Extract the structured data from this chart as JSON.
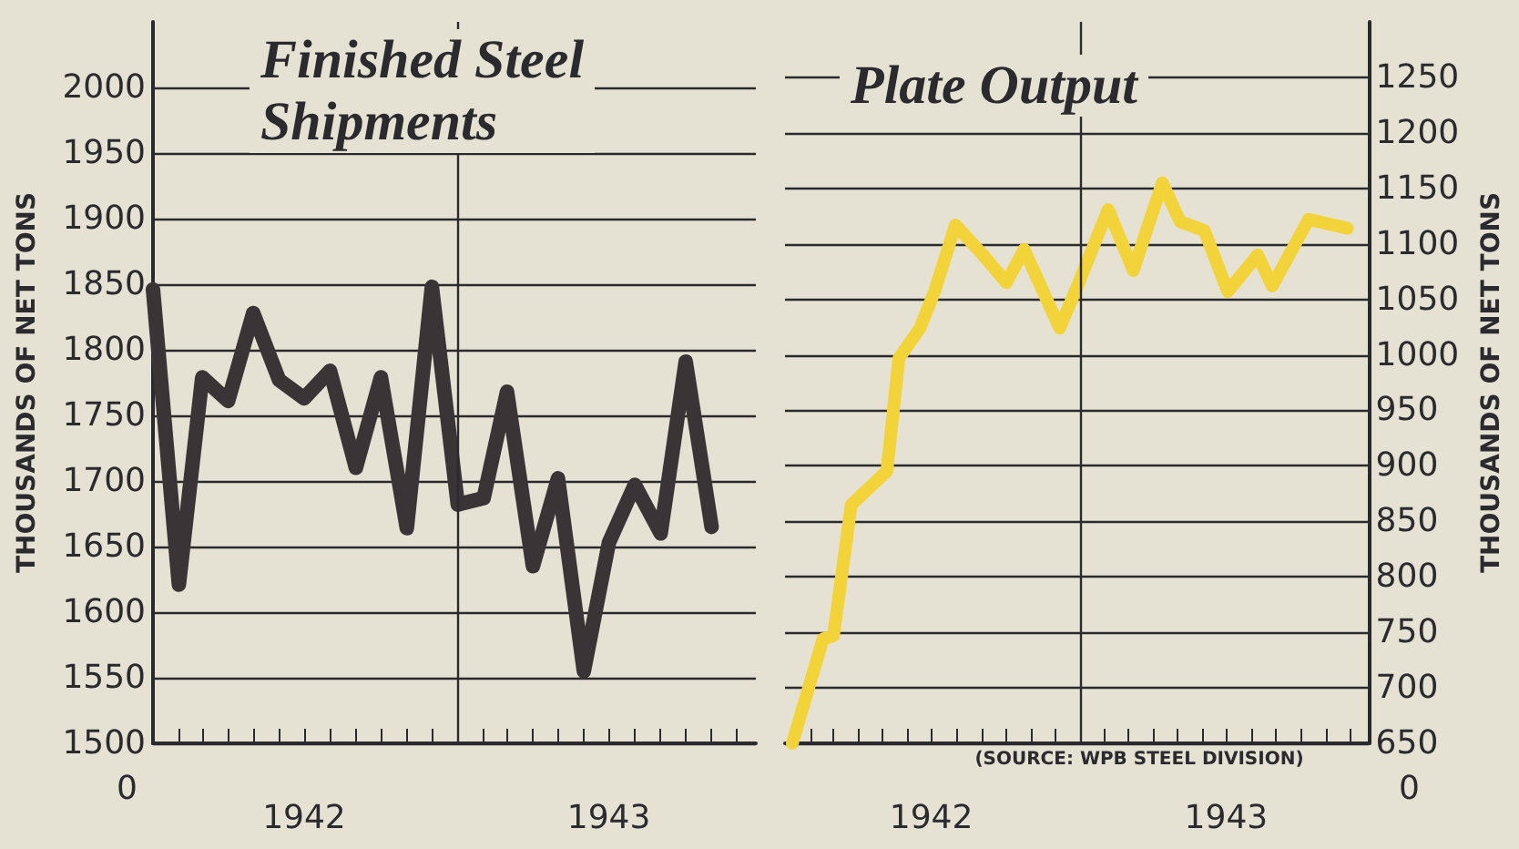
{
  "chart_data": [
    {
      "type": "line",
      "title": "Finished Steel\nShipments",
      "ylabel": "THOUSANDS OF NET TONS",
      "x": [
        "1942-01",
        "1942-02",
        "1942-03",
        "1942-04",
        "1942-05",
        "1942-06",
        "1942-07",
        "1942-08",
        "1942-09",
        "1942-10",
        "1942-11",
        "1942-12",
        "1943-01",
        "1943-02",
        "1943-03",
        "1943-04",
        "1943-05",
        "1943-06",
        "1943-07",
        "1943-08",
        "1943-09",
        "1943-10",
        "1943-11"
      ],
      "series": [
        {
          "color": "#3a3436",
          "values": [
            1846,
            1621,
            1779,
            1761,
            1828,
            1777,
            1763,
            1784,
            1710,
            1779,
            1664,
            1848,
            1682,
            1687,
            1768,
            1635,
            1702,
            1555,
            1653,
            1697,
            1660,
            1791,
            1665
          ]
        }
      ],
      "xlim": [
        "1942-01-01",
        "1943-12-24"
      ],
      "xticks": [
        {
          "value": "1942-02",
          "label": null
        },
        {
          "value": "1942-03",
          "label": null
        },
        {
          "value": "1942-04",
          "label": null
        },
        {
          "value": "1942-05",
          "label": null
        },
        {
          "value": "1942-06",
          "label": null
        },
        {
          "value": "1942-07-01",
          "label": "1942"
        },
        {
          "value": "1942-08",
          "label": null
        },
        {
          "value": "1942-09",
          "label": null
        },
        {
          "value": "1942-10",
          "label": null
        },
        {
          "value": "1942-11",
          "label": null
        },
        {
          "value": "1942-12",
          "label": null
        },
        {
          "value": "1943-01",
          "label": null
        },
        {
          "value": "1943-02",
          "label": null
        },
        {
          "value": "1943-03",
          "label": null
        },
        {
          "value": "1943-04",
          "label": null
        },
        {
          "value": "1943-05",
          "label": null
        },
        {
          "value": "1943-06",
          "label": null
        },
        {
          "value": "1943-07-01",
          "label": "1943"
        },
        {
          "value": "1943-08",
          "label": null
        },
        {
          "value": "1943-09",
          "label": null
        },
        {
          "value": "1943-10",
          "label": null
        },
        {
          "value": "1943-11",
          "label": null
        },
        {
          "value": "1943-12",
          "label": null
        }
      ],
      "ylim": [
        1500,
        2050
      ],
      "yticks": [
        1500,
        1550,
        1600,
        1650,
        1700,
        1750,
        1800,
        1850,
        1900,
        1950,
        2000
      ],
      "ref_lines": [
        {
          "axis": "x",
          "value": "1943-01-01",
          "color": "#2b2a2e"
        }
      ],
      "annotations": [
        "0"
      ],
      "grid": "y",
      "line_style": "solid"
    },
    {
      "type": "line",
      "title": "Plate Output",
      "ylabel": "THOUSANDS OF NET TONS",
      "x": [
        "1942-01-10",
        "1942-02-17",
        "1942-03-02",
        "1942-03-24",
        "1942-05-07",
        "1942-05-22",
        "1942-06-17",
        "1942-07-05",
        "1942-07-31",
        "1942-09-03",
        "1942-10-02",
        "1942-10-24",
        "1942-12-07",
        "1942-12-29",
        "1943-02-05",
        "1943-03-08",
        "1943-04-13",
        "1943-05-05",
        "1943-06-04",
        "1943-07-03",
        "1943-08-09",
        "1943-08-27",
        "1943-10-11",
        "1943-11-28"
      ],
      "series": [
        {
          "color": "#f2d43a",
          "values": [
            650,
            744,
            747,
            865,
            895,
            997,
            1024,
            1057,
            1117,
            1090,
            1065,
            1095,
            1024,
            1062,
            1131,
            1076,
            1155,
            1120,
            1112,
            1057,
            1090,
            1062,
            1122,
            1114
          ]
        }
      ],
      "xlim": [
        "1942-01-01",
        "1943-12-24"
      ],
      "xticks": [
        {
          "value": "1942-02",
          "label": null
        },
        {
          "value": "1942-03",
          "label": null
        },
        {
          "value": "1942-04",
          "label": null
        },
        {
          "value": "1942-05",
          "label": null
        },
        {
          "value": "1942-06",
          "label": null
        },
        {
          "value": "1942-07-01",
          "label": "1942"
        },
        {
          "value": "1942-08",
          "label": null
        },
        {
          "value": "1942-09",
          "label": null
        },
        {
          "value": "1942-10",
          "label": null
        },
        {
          "value": "1942-11",
          "label": null
        },
        {
          "value": "1942-12",
          "label": null
        },
        {
          "value": "1943-01",
          "label": null
        },
        {
          "value": "1943-02",
          "label": null
        },
        {
          "value": "1943-03",
          "label": null
        },
        {
          "value": "1943-04",
          "label": null
        },
        {
          "value": "1943-05",
          "label": null
        },
        {
          "value": "1943-06",
          "label": null
        },
        {
          "value": "1943-07-01",
          "label": "1943"
        },
        {
          "value": "1943-08",
          "label": null
        },
        {
          "value": "1943-09",
          "label": null
        },
        {
          "value": "1943-10",
          "label": null
        },
        {
          "value": "1943-11",
          "label": null
        },
        {
          "value": "1943-12",
          "label": null
        }
      ],
      "ylim": [
        650,
        1300
      ],
      "yticks": [
        650,
        700,
        750,
        800,
        850,
        900,
        950,
        1000,
        1050,
        1100,
        1150,
        1200,
        1250
      ],
      "ref_lines": [
        {
          "axis": "x",
          "value": "1943-01-01",
          "color": "#2b2a2e"
        }
      ],
      "annotations": [
        "(SOURCE: WPB STEEL DIVISION)",
        "0"
      ],
      "grid": "y",
      "line_style": "solid"
    }
  ]
}
